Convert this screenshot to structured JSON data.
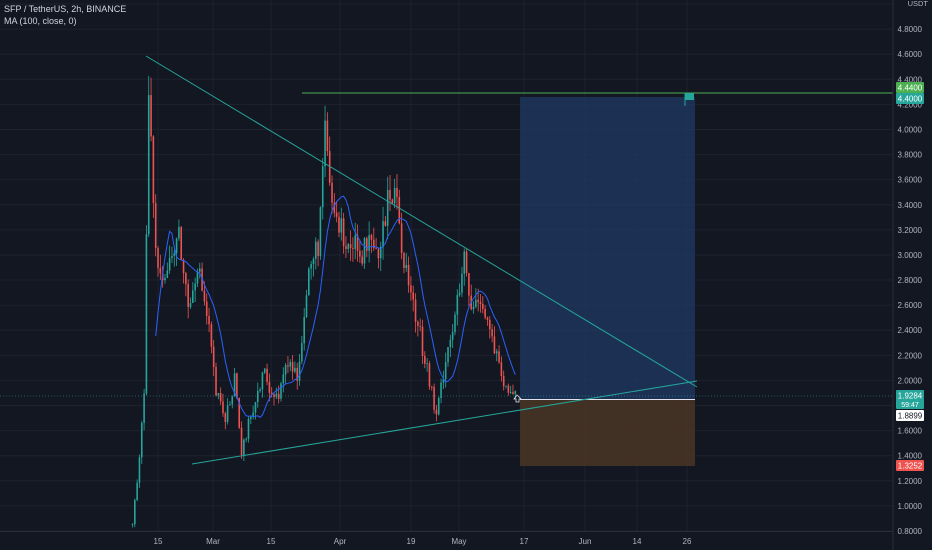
{
  "legend": {
    "symbol": "SFP / TetherUS, 2h, BINANCE",
    "indicator": "MA (100, close, 0)"
  },
  "currency_label": [
    "USDT"
  ],
  "price_tags": {
    "target_top": "4.4400",
    "target_bottom": "4.4000",
    "last": "1.9284",
    "countdown": "59:47",
    "entry": "1.8899",
    "stop": "1.3252"
  },
  "colors": {
    "background": "#131722",
    "up": "#26a69a",
    "down": "#ef5350",
    "ma": "#2962ff",
    "trendline": "#26a69a",
    "target_line": "#4caf50",
    "profit_zone": "#1f3a64",
    "loss_zone": "#4a3524"
  },
  "chart_data": {
    "type": "candlestick",
    "y_axis": {
      "range": [
        0.8,
        5.0
      ],
      "ticks": [
        "0.8000",
        "1.0000",
        "1.2000",
        "1.4000",
        "1.6000",
        "1.8000",
        "2.0000",
        "2.2000",
        "2.4000",
        "2.6000",
        "2.8000",
        "3.0000",
        "3.2000",
        "3.4000",
        "3.6000",
        "3.8000",
        "4.0000",
        "4.2000",
        "4.4000",
        "4.6000",
        "4.8000",
        "5.0000"
      ],
      "position": "right"
    },
    "x_axis": {
      "tick_labels": [
        "15",
        "Mar",
        "15",
        "Apr",
        "19",
        "May",
        "17",
        "Jun",
        "14",
        "26"
      ]
    },
    "price_path_anchors": [
      [
        0,
        0.85
      ],
      [
        3,
        1.4
      ],
      [
        5,
        1.85
      ],
      [
        7,
        4.3
      ],
      [
        10,
        3.0
      ],
      [
        14,
        2.85
      ],
      [
        20,
        3.15
      ],
      [
        24,
        2.6
      ],
      [
        28,
        2.95
      ],
      [
        33,
        2.4
      ],
      [
        36,
        1.9
      ],
      [
        40,
        1.7
      ],
      [
        44,
        2.0
      ],
      [
        47,
        1.4
      ],
      [
        52,
        1.8
      ],
      [
        57,
        2.05
      ],
      [
        62,
        1.85
      ],
      [
        67,
        2.15
      ],
      [
        71,
        2.05
      ],
      [
        76,
        2.85
      ],
      [
        80,
        3.1
      ],
      [
        83,
        3.95
      ],
      [
        86,
        3.4
      ],
      [
        90,
        3.2
      ],
      [
        94,
        3.1
      ],
      [
        98,
        3.0
      ],
      [
        102,
        3.05
      ],
      [
        106,
        2.95
      ],
      [
        110,
        3.4
      ],
      [
        113,
        3.55
      ],
      [
        116,
        3.1
      ],
      [
        120,
        2.7
      ],
      [
        124,
        2.35
      ],
      [
        127,
        2.1
      ],
      [
        131,
        1.7
      ],
      [
        135,
        2.2
      ],
      [
        139,
        2.5
      ],
      [
        143,
        2.95
      ],
      [
        146,
        2.55
      ],
      [
        150,
        2.7
      ],
      [
        154,
        2.4
      ],
      [
        158,
        2.1
      ],
      [
        161,
        1.9
      ],
      [
        165,
        1.93
      ]
    ],
    "moving_average": {
      "period": 100,
      "source": "close",
      "offset": 0
    },
    "trendlines": [
      {
        "from": [
          "Feb 09",
          4.75
        ],
        "to": [
          "Jun 26",
          1.95
        ]
      },
      {
        "from": [
          "Feb 24",
          1.35
        ],
        "to": [
          "Jun 26",
          2.05
        ]
      }
    ],
    "target_line": 4.44,
    "long_position": {
      "entry": 1.8899,
      "target": 4.4,
      "stop": 1.3252
    },
    "last_price": 1.9284
  }
}
